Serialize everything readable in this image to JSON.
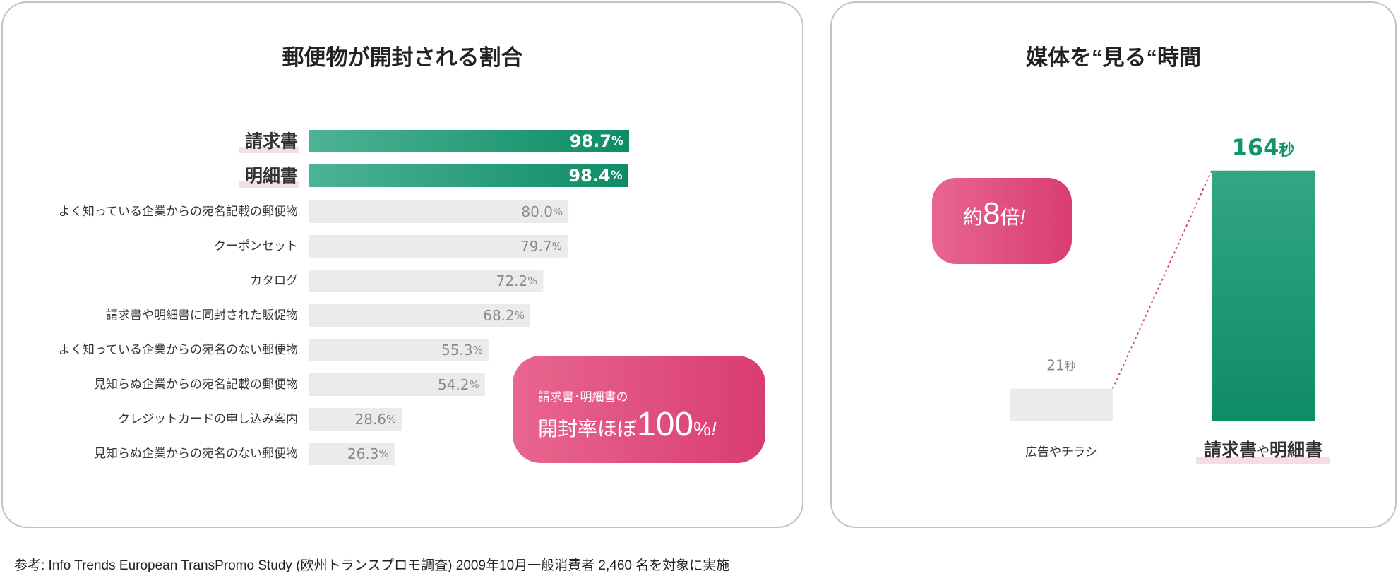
{
  "left_panel": {
    "title": "郵便物が開封される割合",
    "chart_data": {
      "type": "bar",
      "orientation": "horizontal",
      "title": "郵便物が開封される割合",
      "categories": [
        "請求書",
        "明細書",
        "よく知っている企業からの宛名記載の郵便物",
        "クーポンセット",
        "カタログ",
        "請求書や明細書に同封された販促物",
        "よく知っている企業からの宛名のない郵便物",
        "見知らぬ企業からの宛名記載の郵便物",
        "クレジットカードの申し込み案内",
        "見知らぬ企業からの宛名のない郵便物"
      ],
      "values": [
        98.7,
        98.4,
        80.0,
        79.7,
        72.2,
        68.2,
        55.3,
        54.2,
        28.6,
        26.3
      ],
      "value_labels": [
        "98.7",
        "98.4",
        "80.0",
        "79.7",
        "72.2",
        "68.2",
        "55.3",
        "54.2",
        "28.6",
        "26.3"
      ],
      "value_unit": "%",
      "highlighted": [
        true,
        true,
        false,
        false,
        false,
        false,
        false,
        false,
        false,
        false
      ],
      "colors": {
        "highlight_start": "#4db396",
        "highlight_end": "#0e8c66",
        "normal": "#ebebeb",
        "normal_text": "#8a8a8a",
        "highlight_text": "#ffffff"
      },
      "xlim": [
        0,
        100
      ]
    },
    "callout": {
      "small": "請求書･明細書の",
      "big_prefix": "開封率ほぼ",
      "big_number": "100",
      "big_unit": "%",
      "big_suffix": "!"
    }
  },
  "right_panel": {
    "title": "媒体を“見る“時間",
    "chart_data": {
      "type": "bar",
      "title": "媒体を“見る“時間",
      "categories": [
        "広告やチラシ",
        "請求書や明細書"
      ],
      "values": [
        21,
        164
      ],
      "value_unit": "秒",
      "highlighted": [
        false,
        true
      ],
      "colors": {
        "normal": "#ebebeb",
        "highlight_start": "#33a685",
        "highlight_end": "#0e8c66",
        "value_highlight": "#12946b",
        "value_normal": "#888888",
        "connector": "#d9446f"
      },
      "ylim": [
        0,
        175
      ]
    },
    "category_label_parts": [
      {
        "a": "広告やチラシ",
        "b": "",
        "c": ""
      },
      {
        "a": "請求書",
        "b": "や",
        "c": "明細書"
      }
    ],
    "callout": {
      "prefix": "約",
      "number": "8",
      "suffix": "倍",
      "exclaim": "!"
    }
  },
  "footnote": "参考: Info Trends European TransPromo Study (欧州トランスプロモ調査) 2009年10月一般消費者 2,460 名を対象に実施"
}
